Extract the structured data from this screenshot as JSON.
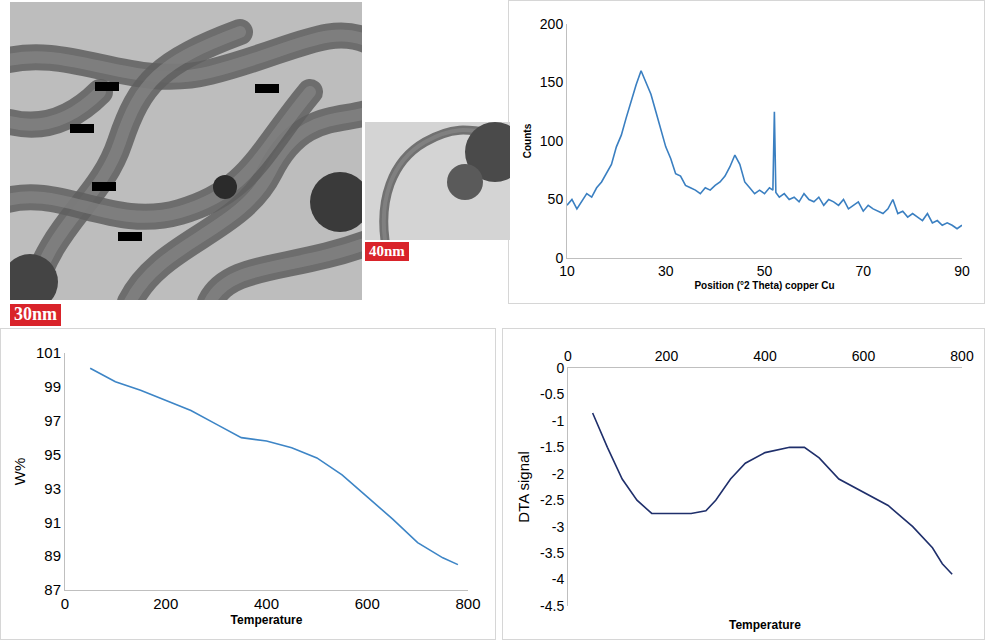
{
  "images": [
    {
      "label": "30nm"
    },
    {
      "label": "40nm"
    }
  ],
  "chart_data": [
    {
      "type": "line",
      "x_label": "Position (°2 Theta) copper Cu",
      "y_label": "Counts",
      "color": "#3a7fc1",
      "grid": false,
      "x": [
        10,
        11,
        12,
        13,
        14,
        15,
        16,
        17,
        18,
        19,
        20,
        21,
        22,
        23,
        24,
        25,
        26,
        27,
        28,
        29,
        30,
        31,
        32,
        33,
        34,
        35,
        36,
        37,
        38,
        39,
        40,
        41,
        42,
        43,
        44,
        45,
        46,
        47,
        48,
        49,
        50,
        51,
        51.7,
        52,
        52.3,
        53,
        54,
        55,
        56,
        57,
        58,
        59,
        60,
        61,
        62,
        63,
        64,
        65,
        66,
        67,
        68,
        69,
        70,
        71,
        72,
        73,
        74,
        75,
        76,
        77,
        78,
        79,
        80,
        81,
        82,
        83,
        84,
        85,
        86,
        87,
        88,
        89,
        90
      ],
      "values": [
        45,
        50,
        42,
        48,
        55,
        52,
        60,
        65,
        72,
        80,
        95,
        105,
        120,
        135,
        148,
        160,
        150,
        140,
        125,
        110,
        95,
        85,
        72,
        70,
        62,
        60,
        58,
        55,
        60,
        58,
        62,
        65,
        70,
        78,
        88,
        80,
        65,
        60,
        55,
        58,
        55,
        60,
        58,
        125,
        56,
        52,
        55,
        50,
        52,
        48,
        55,
        50,
        48,
        52,
        45,
        50,
        48,
        45,
        50,
        42,
        45,
        48,
        40,
        45,
        42,
        40,
        38,
        42,
        50,
        38,
        40,
        35,
        38,
        35,
        32,
        38,
        30,
        32,
        28,
        30,
        28,
        25,
        28
      ],
      "xlim": [
        10,
        90
      ],
      "xticks": [
        10,
        30,
        50,
        70,
        90
      ],
      "ylim": [
        0,
        200
      ],
      "yticks": [
        0,
        50,
        100,
        150,
        200
      ]
    },
    {
      "type": "line",
      "x_label": "Temperature",
      "y_label": "W%",
      "color": "#3d85c6",
      "grid": false,
      "x": [
        50,
        100,
        150,
        200,
        250,
        300,
        350,
        400,
        450,
        500,
        550,
        600,
        650,
        700,
        750,
        780
      ],
      "values": [
        100.1,
        99.3,
        98.8,
        98.2,
        97.6,
        96.8,
        96.0,
        95.8,
        95.4,
        94.8,
        93.8,
        92.5,
        91.2,
        89.8,
        88.9,
        88.5
      ],
      "xlim": [
        0,
        800
      ],
      "xticks": [
        0,
        200,
        400,
        600,
        800
      ],
      "ylim": [
        87,
        101
      ],
      "yticks": [
        87,
        89,
        91,
        93,
        95,
        97,
        99,
        101
      ]
    },
    {
      "type": "line",
      "x_label": "Temperature",
      "y_label": "DTA signal",
      "color": "#1f2f6b",
      "grid": false,
      "x": [
        50,
        80,
        110,
        140,
        170,
        200,
        250,
        280,
        300,
        330,
        360,
        400,
        450,
        480,
        510,
        550,
        600,
        650,
        700,
        740,
        760,
        780
      ],
      "values": [
        -0.85,
        -1.5,
        -2.1,
        -2.5,
        -2.75,
        -2.75,
        -2.75,
        -2.7,
        -2.5,
        -2.1,
        -1.8,
        -1.6,
        -1.5,
        -1.5,
        -1.7,
        -2.1,
        -2.35,
        -2.6,
        -3.0,
        -3.4,
        -3.7,
        -3.9
      ],
      "xlim": [
        0,
        800
      ],
      "xticks": [
        0,
        200,
        400,
        600,
        800
      ],
      "ylim": [
        -4.5,
        0
      ],
      "yticks": [
        -4.5,
        -4,
        -3.5,
        -3,
        -2.5,
        -2,
        -1.5,
        -1,
        -0.5,
        0
      ]
    }
  ]
}
